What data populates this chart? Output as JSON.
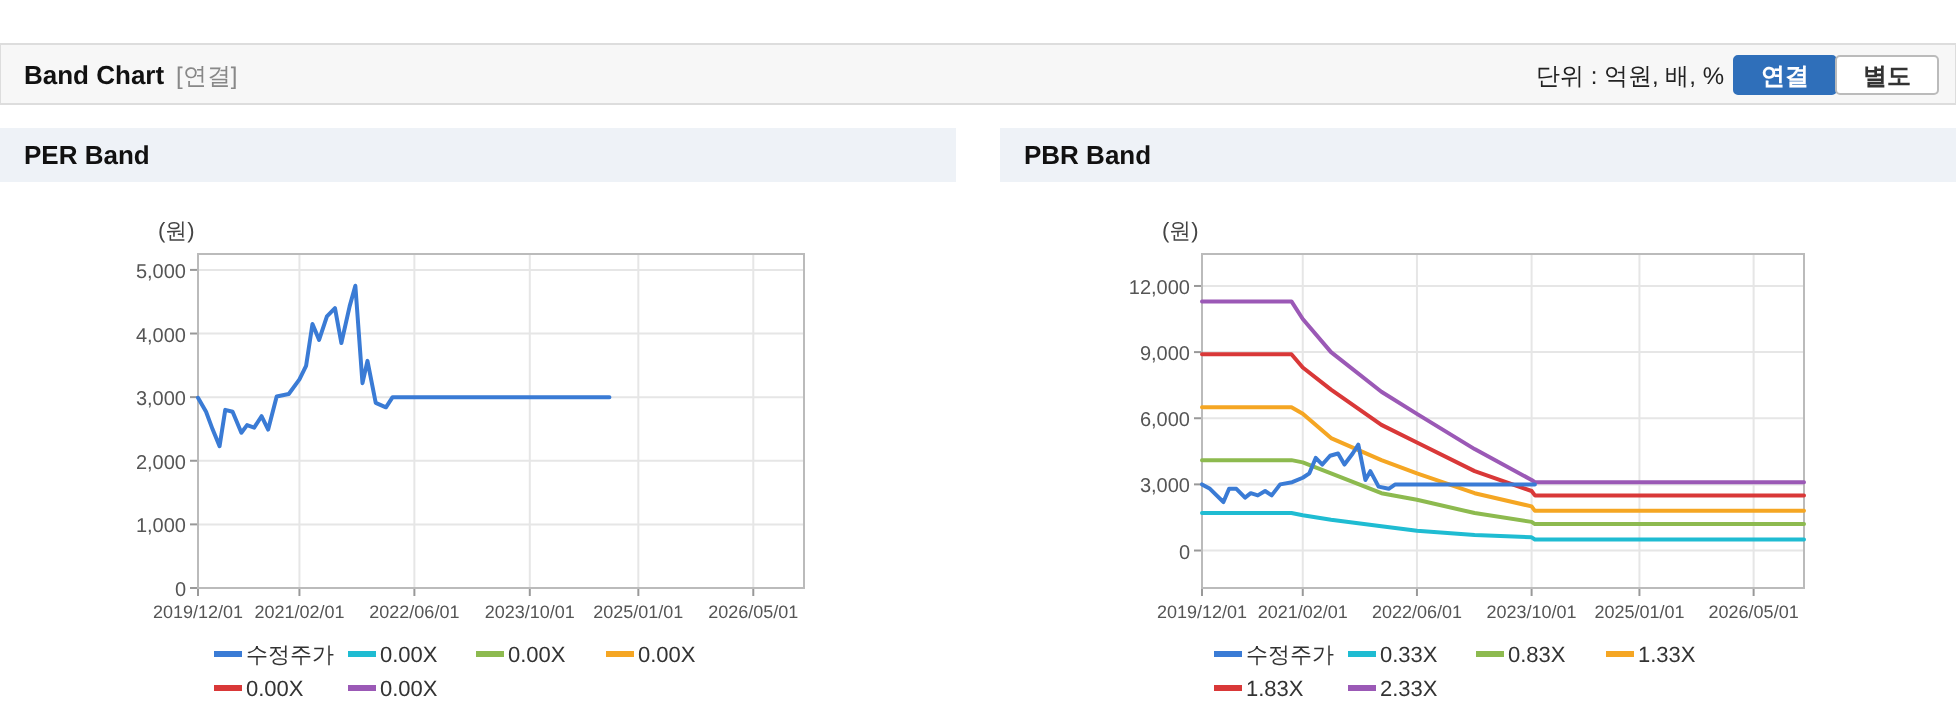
{
  "chart_data": [
    {
      "type": "other",
      "title": "Band Chart",
      "subtitle": "[연결]",
      "annotations": [
        "단위 : 억원, 배, %",
        "연결",
        "별도"
      ]
    },
    {
      "type": "line",
      "title": "PER Band",
      "ylabel": "(원)",
      "legend": "bottom",
      "grid": true,
      "x": [
        "2019-12-01",
        "2020-01-04",
        "2020-02-01",
        "2020-03-01",
        "2020-03-25",
        "2020-04-25",
        "2020-06-01",
        "2020-06-25",
        "2020-07-25",
        "2020-08-25",
        "2020-09-22",
        "2020-10-28",
        "2020-12-18",
        "2021-02-01",
        "2021-03-01",
        "2021-03-28",
        "2021-04-25",
        "2021-05-28",
        "2021-07-01",
        "2021-07-28",
        "2021-09-01",
        "2021-09-25",
        "2021-10-25",
        "2021-11-15",
        "2021-12-20",
        "2022-02-01",
        "2022-03-01",
        "2024-09-01"
      ],
      "xlim": [
        "2019-12-01",
        "2026-12-01"
      ],
      "xticks": [
        {
          "value": "2019-12-01",
          "label": "2019/12/01"
        },
        {
          "value": "2021-02-01",
          "label": "2021/02/01"
        },
        {
          "value": "2022-06-01",
          "label": "2022/06/01"
        },
        {
          "value": "2023-10-01",
          "label": "2023/10/01"
        },
        {
          "value": "2025-01-01",
          "label": "2025/01/01"
        },
        {
          "value": "2026-05-01",
          "label": "2026/05/01"
        }
      ],
      "ylim": [
        0,
        5250
      ],
      "yticks": [
        0,
        {
          "value": 1000,
          "label": "1,000"
        },
        {
          "value": 2000,
          "label": "2,000"
        },
        {
          "value": 3000,
          "label": "3,000"
        },
        {
          "value": 4000,
          "label": "4,000"
        },
        {
          "value": 5000,
          "label": "5,000"
        }
      ],
      "series": [
        {
          "name": "수정주가",
          "color": "#3a7bd5",
          "values": [
            2990,
            2770,
            2490,
            2230,
            2800,
            2770,
            2440,
            2560,
            2520,
            2700,
            2490,
            3010,
            3050,
            3280,
            3490,
            4150,
            3900,
            4270,
            4400,
            3850,
            4430,
            4750,
            3220,
            3570,
            2910,
            2840,
            3000,
            3000
          ]
        },
        {
          "name": "0.00X",
          "color": "#1fbcd2",
          "values": [
            null,
            null,
            null,
            null,
            null,
            null,
            null,
            null,
            null,
            null,
            null,
            null,
            null,
            null,
            null,
            null,
            null,
            null,
            null,
            null,
            null,
            null,
            null,
            null,
            null,
            null,
            null,
            null
          ]
        },
        {
          "name": "0.00X",
          "color": "#8dba4f",
          "values": [
            null,
            null,
            null,
            null,
            null,
            null,
            null,
            null,
            null,
            null,
            null,
            null,
            null,
            null,
            null,
            null,
            null,
            null,
            null,
            null,
            null,
            null,
            null,
            null,
            null,
            null,
            null,
            null
          ]
        },
        {
          "name": "0.00X",
          "color": "#f5a623",
          "values": [
            null,
            null,
            null,
            null,
            null,
            null,
            null,
            null,
            null,
            null,
            null,
            null,
            null,
            null,
            null,
            null,
            null,
            null,
            null,
            null,
            null,
            null,
            null,
            null,
            null,
            null,
            null,
            null
          ]
        },
        {
          "name": "0.00X",
          "color": "#d93838",
          "values": [
            null,
            null,
            null,
            null,
            null,
            null,
            null,
            null,
            null,
            null,
            null,
            null,
            null,
            null,
            null,
            null,
            null,
            null,
            null,
            null,
            null,
            null,
            null,
            null,
            null,
            null,
            null,
            null
          ]
        },
        {
          "name": "0.00X",
          "color": "#9b59b6",
          "values": [
            null,
            null,
            null,
            null,
            null,
            null,
            null,
            null,
            null,
            null,
            null,
            null,
            null,
            null,
            null,
            null,
            null,
            null,
            null,
            null,
            null,
            null,
            null,
            null,
            null,
            null,
            null,
            null
          ]
        }
      ]
    },
    {
      "type": "line",
      "title": "PBR Band",
      "ylabel": "(원)",
      "legend": "bottom",
      "grid": true,
      "x": [
        "2019-12-01",
        "2020-12-15",
        "2021-02-01",
        "2021-06-01",
        "2022-01-01",
        "2022-06-01",
        "2023-02-01",
        "2023-10-01",
        "2023-10-15",
        "2026-12-01"
      ],
      "xlim": [
        "2019-12-01",
        "2026-12-01"
      ],
      "xticks": [
        {
          "value": "2019-12-01",
          "label": "2019/12/01"
        },
        {
          "value": "2021-02-01",
          "label": "2021/02/01"
        },
        {
          "value": "2022-06-01",
          "label": "2022/06/01"
        },
        {
          "value": "2023-10-01",
          "label": "2023/10/01"
        },
        {
          "value": "2025-01-01",
          "label": "2025/01/01"
        },
        {
          "value": "2026-05-01",
          "label": "2026/05/01"
        }
      ],
      "ylim": [
        -1700,
        13450
      ],
      "yticks": [
        0,
        {
          "value": 3000,
          "label": "3,000"
        },
        {
          "value": 6000,
          "label": "6,000"
        },
        {
          "value": 9000,
          "label": "9,000"
        },
        {
          "value": 12000,
          "label": "12,000"
        }
      ],
      "series": [
        {
          "name": "수정주가",
          "color": "#3a7bd5",
          "x": [
            "2019-12-01",
            "2020-01-04",
            "2020-02-01",
            "2020-03-01",
            "2020-03-25",
            "2020-04-25",
            "2020-06-01",
            "2020-06-25",
            "2020-07-25",
            "2020-08-25",
            "2020-09-22",
            "2020-10-28",
            "2020-12-18",
            "2021-02-01",
            "2021-03-01",
            "2021-03-28",
            "2021-04-25",
            "2021-05-28",
            "2021-07-01",
            "2021-07-28",
            "2021-09-01",
            "2021-09-25",
            "2021-10-25",
            "2021-11-15",
            "2021-12-20",
            "2022-02-01",
            "2022-03-01",
            "2023-10-15"
          ],
          "values": [
            3000,
            2800,
            2500,
            2200,
            2800,
            2800,
            2400,
            2600,
            2500,
            2700,
            2500,
            3000,
            3100,
            3300,
            3500,
            4200,
            3900,
            4300,
            4400,
            3900,
            4400,
            4800,
            3200,
            3600,
            2900,
            2800,
            3000,
            3000
          ]
        },
        {
          "name": "0.33X",
          "color": "#1fbcd2",
          "values": [
            1700,
            1700,
            1600,
            1400,
            1100,
            900,
            700,
            600,
            500,
            500
          ]
        },
        {
          "name": "0.83X",
          "color": "#8dba4f",
          "values": [
            4100,
            4100,
            4000,
            3500,
            2600,
            2300,
            1700,
            1300,
            1200,
            1200
          ]
        },
        {
          "name": "1.33X",
          "color": "#f5a623",
          "values": [
            6500,
            6500,
            6200,
            5100,
            4100,
            3500,
            2600,
            2000,
            1800,
            1800
          ]
        },
        {
          "name": "1.83X",
          "color": "#d93838",
          "values": [
            8900,
            8900,
            8300,
            7300,
            5700,
            4900,
            3600,
            2700,
            2500,
            2500
          ]
        },
        {
          "name": "2.33X",
          "color": "#9b59b6",
          "values": [
            11300,
            11300,
            10500,
            9000,
            7200,
            6200,
            4600,
            3200,
            3100,
            3100
          ]
        }
      ]
    }
  ]
}
